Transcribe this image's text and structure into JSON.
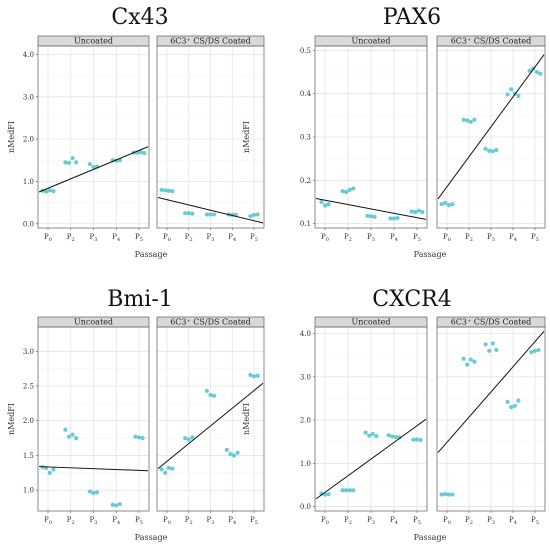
{
  "panel_labels": [
    "Uncoated",
    "6C3⁺ CS/DS Coated"
  ],
  "x_label": "Passage",
  "y_label": "nMedFI",
  "x_ticks": [
    {
      "p": "P",
      "sub": "0"
    },
    {
      "p": "P",
      "sub": "2"
    },
    {
      "p": "P",
      "sub": "3"
    },
    {
      "p": "P",
      "sub": "4"
    },
    {
      "p": "P",
      "sub": "5"
    }
  ],
  "colors": {
    "points": "#4cc3cf",
    "line": "#111111",
    "strip": "#d9d9d9"
  },
  "chart_data": [
    {
      "type": "scatter",
      "title": "Cx43",
      "xlabel": "Passage",
      "ylabel": "nMedFI",
      "x": [
        "P0",
        "P2",
        "P3",
        "P4",
        "P5"
      ],
      "ylim": [
        -0.1,
        4.2
      ],
      "yticks": [
        "0.0",
        "1.0",
        "2.0",
        "3.0",
        "4.0"
      ],
      "ytick_values": [
        0,
        1,
        2,
        3,
        4
      ],
      "grid": true,
      "panels": [
        {
          "name": "Uncoated",
          "points": [
            [
              0,
              0.78
            ],
            [
              0,
              0.76
            ],
            [
              0,
              0.79
            ],
            [
              0,
              0.77
            ],
            [
              1,
              1.45
            ],
            [
              1,
              1.44
            ],
            [
              1,
              1.55
            ],
            [
              1,
              1.45
            ],
            [
              2,
              1.41
            ],
            [
              2,
              1.34
            ],
            [
              2,
              1.35
            ],
            [
              3,
              1.5
            ],
            [
              3,
              1.49
            ],
            [
              3,
              1.5
            ],
            [
              4,
              1.68
            ],
            [
              4,
              1.68
            ],
            [
              4,
              1.69
            ],
            [
              4,
              1.67
            ]
          ],
          "fit": {
            "y_start": 0.75,
            "y_end": 1.82
          }
        },
        {
          "name": "6C3⁺ CS/DS Coated",
          "points": [
            [
              0,
              0.8
            ],
            [
              0,
              0.79
            ],
            [
              0,
              0.78
            ],
            [
              0,
              0.77
            ],
            [
              1,
              0.25
            ],
            [
              1,
              0.25
            ],
            [
              1,
              0.24
            ],
            [
              2,
              0.22
            ],
            [
              2,
              0.22
            ],
            [
              2,
              0.22
            ],
            [
              3,
              0.22
            ],
            [
              3,
              0.21
            ],
            [
              3,
              0.21
            ],
            [
              4,
              0.18
            ],
            [
              4,
              0.21
            ],
            [
              4,
              0.22
            ]
          ],
          "fit": {
            "y_start": 0.62,
            "y_end": 0.02
          }
        }
      ]
    },
    {
      "type": "scatter",
      "title": "PAX6",
      "xlabel": "Passage",
      "ylabel": "nMedFI",
      "x": [
        "P0",
        "P2",
        "P3",
        "P4",
        "P5"
      ],
      "ylim": [
        0.09,
        0.51
      ],
      "yticks": [
        "0.1",
        "0.2",
        "0.3",
        "0.4",
        "0.5"
      ],
      "ytick_values": [
        0.1,
        0.2,
        0.3,
        0.4,
        0.5
      ],
      "grid": true,
      "panels": [
        {
          "name": "Uncoated",
          "points": [
            [
              0,
              0.15
            ],
            [
              0,
              0.142
            ],
            [
              0,
              0.145
            ],
            [
              1,
              0.175
            ],
            [
              1,
              0.173
            ],
            [
              1,
              0.178
            ],
            [
              1,
              0.181
            ],
            [
              2,
              0.118
            ],
            [
              2,
              0.117
            ],
            [
              2,
              0.116
            ],
            [
              3,
              0.112
            ],
            [
              3,
              0.112
            ],
            [
              3,
              0.113
            ],
            [
              4,
              0.128
            ],
            [
              4,
              0.127
            ],
            [
              4,
              0.13
            ],
            [
              4,
              0.127
            ]
          ],
          "fit": {
            "y_start": 0.158,
            "y_end": 0.11
          }
        },
        {
          "name": "6C3⁺ CS/DS Coated",
          "points": [
            [
              0,
              0.145
            ],
            [
              0,
              0.148
            ],
            [
              0,
              0.143
            ],
            [
              0,
              0.145
            ],
            [
              1,
              0.34
            ],
            [
              1,
              0.338
            ],
            [
              1,
              0.335
            ],
            [
              1,
              0.34
            ],
            [
              2,
              0.273
            ],
            [
              2,
              0.268
            ],
            [
              2,
              0.267
            ],
            [
              2,
              0.27
            ],
            [
              3,
              0.398
            ],
            [
              3,
              0.41
            ],
            [
              3,
              0.4
            ],
            [
              3,
              0.395
            ],
            [
              4,
              0.453
            ],
            [
              4,
              0.458
            ],
            [
              4,
              0.45
            ],
            [
              4,
              0.446
            ]
          ],
          "fit": {
            "y_start": 0.157,
            "y_end": 0.49
          }
        }
      ]
    },
    {
      "type": "scatter",
      "title": "Bmi-1",
      "xlabel": "Passage",
      "ylabel": "nMedFI",
      "x": [
        "P0",
        "P2",
        "P3",
        "P4",
        "P5"
      ],
      "ylim": [
        0.7,
        3.35
      ],
      "yticks": [
        "1.0",
        "1.5",
        "2.0",
        "2.5",
        "3.0"
      ],
      "ytick_values": [
        1,
        1.5,
        2,
        2.5,
        3
      ],
      "grid": true,
      "panels": [
        {
          "name": "Uncoated",
          "points": [
            [
              0,
              1.33
            ],
            [
              0,
              1.32
            ],
            [
              0,
              1.25
            ],
            [
              0,
              1.3
            ],
            [
              1,
              1.87
            ],
            [
              1,
              1.77
            ],
            [
              1,
              1.8
            ],
            [
              1,
              1.75
            ],
            [
              2,
              0.98
            ],
            [
              2,
              0.96
            ],
            [
              2,
              0.97
            ],
            [
              3,
              0.79
            ],
            [
              3,
              0.78
            ],
            [
              3,
              0.8
            ],
            [
              4,
              1.77
            ],
            [
              4,
              1.76
            ],
            [
              4,
              1.75
            ]
          ],
          "fit": {
            "y_start": 1.34,
            "y_end": 1.28
          }
        },
        {
          "name": "6C3⁺ CS/DS Coated",
          "points": [
            [
              0,
              1.3
            ],
            [
              0,
              1.25
            ],
            [
              0,
              1.32
            ],
            [
              0,
              1.31
            ],
            [
              1,
              1.75
            ],
            [
              1,
              1.73
            ],
            [
              1,
              1.76
            ],
            [
              2,
              2.43
            ],
            [
              2,
              2.37
            ],
            [
              2,
              2.36
            ],
            [
              3,
              1.58
            ],
            [
              3,
              1.52
            ],
            [
              3,
              1.5
            ],
            [
              3,
              1.54
            ],
            [
              4,
              2.66
            ],
            [
              4,
              2.64
            ],
            [
              4,
              2.65
            ]
          ],
          "fit": {
            "y_start": 1.31,
            "y_end": 2.54
          }
        }
      ]
    },
    {
      "type": "scatter",
      "title": "CXCR4",
      "xlabel": "Passage",
      "ylabel": "nMedFI",
      "x": [
        "P0",
        "P2",
        "P3",
        "P4",
        "P5"
      ],
      "ylim": [
        -0.1,
        4.15
      ],
      "yticks": [
        "0.0",
        "1.0",
        "2.0",
        "3.0",
        "4.0"
      ],
      "ytick_values": [
        0,
        1,
        2,
        3,
        4
      ],
      "grid": true,
      "panels": [
        {
          "name": "Uncoated",
          "points": [
            [
              0,
              0.3
            ],
            [
              0,
              0.28
            ],
            [
              0,
              0.29
            ],
            [
              1,
              0.38
            ],
            [
              1,
              0.38
            ],
            [
              1,
              0.38
            ],
            [
              1,
              0.38
            ],
            [
              2,
              1.71
            ],
            [
              2,
              1.64
            ],
            [
              2,
              1.68
            ],
            [
              2,
              1.63
            ],
            [
              3,
              1.65
            ],
            [
              3,
              1.62
            ],
            [
              3,
              1.61
            ],
            [
              3,
              1.6
            ],
            [
              4,
              1.55
            ],
            [
              4,
              1.55
            ],
            [
              4,
              1.54
            ]
          ],
          "fit": {
            "y_start": 0.18,
            "y_end": 2.02
          }
        },
        {
          "name": "6C3⁺ CS/DS Coated",
          "points": [
            [
              0,
              0.28
            ],
            [
              0,
              0.29
            ],
            [
              0,
              0.28
            ],
            [
              0,
              0.28
            ],
            [
              1,
              3.42
            ],
            [
              1,
              3.28
            ],
            [
              1,
              3.4
            ],
            [
              1,
              3.35
            ],
            [
              2,
              3.75
            ],
            [
              2,
              3.6
            ],
            [
              2,
              3.77
            ],
            [
              2,
              3.62
            ],
            [
              3,
              2.42
            ],
            [
              3,
              2.3
            ],
            [
              3,
              2.33
            ],
            [
              3,
              2.45
            ],
            [
              4,
              3.57
            ],
            [
              4,
              3.6
            ],
            [
              4,
              3.62
            ]
          ],
          "fit": {
            "y_start": 1.25,
            "y_end": 4.05
          }
        }
      ]
    }
  ]
}
